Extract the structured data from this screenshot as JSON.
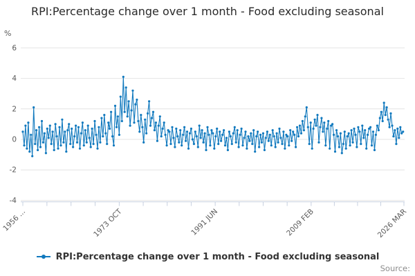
{
  "title": "RPI:Percentage change over 1 month - Food excluding seasonal",
  "legend": {
    "label": "RPI:Percentage change over 1 month - Food excluding seasonal",
    "marker_color": "#1179be"
  },
  "footer": {
    "source_label": "Source:"
  },
  "colors": {
    "line": "#1179be",
    "grid": "#e4e4e4",
    "axis": "#c7d0e0",
    "tick_label": "#595959",
    "title_text": "#2a2a2a",
    "legend_text": "#333333",
    "source_text": "#8c8c8c"
  },
  "chart_data": {
    "type": "line",
    "title": "RPI:Percentage change over 1 month - Food excluding seasonal",
    "xlabel": "",
    "ylabel": "%",
    "ylim": [
      -4,
      6
    ],
    "y_ticks": [
      6,
      4,
      2,
      0,
      -2,
      -4
    ],
    "grid": "horizontal-only",
    "legend_position": "bottom-center",
    "x_start": "1956-01",
    "x_end": "2026-03",
    "sample_interval_months": 3,
    "total_months": 842,
    "x_major_tick_labels": [
      "1956 ...",
      "1973 OCT",
      "1991 JUN",
      "2009 FEB",
      "2026 MAR"
    ],
    "x_major_tick_months": [
      0,
      213,
      425,
      637,
      842
    ],
    "minor_ticks_per_interval": 3,
    "series": [
      {
        "name": "RPI:Percentage change over 1 month - Food excluding seasonal",
        "color": "#1179be",
        "values": [
          0.5,
          -0.4,
          0.9,
          -0.6,
          1.1,
          -0.8,
          0.3,
          -1.1,
          2.1,
          -0.3,
          0.6,
          -0.7,
          0.8,
          -0.5,
          1.2,
          -0.2,
          0.4,
          -0.9,
          0.7,
          0.1,
          0.9,
          -0.3,
          0.5,
          -0.7,
          1.0,
          0.2,
          -0.6,
          0.8,
          -0.4,
          1.3,
          -0.2,
          0.5,
          -0.8,
          0.6,
          1.0,
          -0.3,
          0.7,
          -0.5,
          0.2,
          0.9,
          -0.2,
          0.8,
          -0.6,
          0.4,
          1.1,
          -0.4,
          0.6,
          -0.2,
          0.9,
          0.1,
          -0.5,
          0.7,
          -0.3,
          1.2,
          0.3,
          -0.6,
          0.8,
          -0.2,
          1.4,
          0.2,
          1.6,
          0.4,
          -0.3,
          1.1,
          0.7,
          1.8,
          0.2,
          -0.4,
          2.2,
          0.8,
          1.5,
          0.3,
          2.8,
          1.2,
          4.1,
          1.8,
          3.4,
          1.5,
          2.5,
          0.9,
          1.9,
          3.2,
          1.1,
          2.3,
          2.6,
          1.2,
          0.5,
          1.6,
          0.8,
          -0.2,
          1.3,
          0.4,
          1.7,
          2.5,
          0.9,
          1.4,
          1.8,
          0.6,
          1.1,
          -0.1,
          0.9,
          1.5,
          0.2,
          0.7,
          1.1,
          0.3,
          -0.4,
          0.6,
          0.5,
          -0.3,
          0.8,
          0.1,
          -0.5,
          0.7,
          0.2,
          -0.2,
          0.6,
          -0.4,
          0.3,
          0.8,
          -0.1,
          0.5,
          -0.6,
          0.4,
          0.7,
          0.0,
          -0.3,
          0.5,
          0.2,
          -0.5,
          0.9,
          0.1,
          0.6,
          -0.2,
          0.4,
          -0.7,
          0.8,
          0.3,
          -0.4,
          0.6,
          0.4,
          -0.6,
          0.2,
          0.7,
          -0.3,
          0.5,
          -0.1,
          0.3,
          0.6,
          -0.4,
          0.1,
          -0.7,
          0.5,
          0.2,
          -0.3,
          0.4,
          0.8,
          -0.2,
          0.6,
          -0.5,
          0.3,
          0.7,
          -0.4,
          0.1,
          0.5,
          -0.6,
          0.2,
          -0.1,
          0.4,
          -0.3,
          0.6,
          -0.8,
          0.2,
          0.5,
          -0.5,
          0.3,
          -0.2,
          0.4,
          -0.7,
          0.1,
          0.5,
          -0.1,
          0.3,
          -0.4,
          0.6,
          0.2,
          -0.5,
          0.4,
          -0.2,
          0.7,
          0.1,
          -0.3,
          0.5,
          -0.6,
          0.3,
          0.2,
          -0.4,
          0.6,
          -0.1,
          0.5,
          0.3,
          -0.5,
          0.8,
          0.2,
          0.9,
          0.4,
          1.2,
          0.6,
          1.5,
          2.1,
          0.8,
          -0.3,
          1.1,
          -0.6,
          0.7,
          1.3,
          0.9,
          1.6,
          -0.2,
          0.8,
          1.4,
          0.5,
          1.1,
          -0.4,
          0.7,
          1.2,
          -0.6,
          0.9,
          1.0,
          0.3,
          -0.8,
          0.6,
          0.2,
          -0.5,
          0.4,
          -0.9,
          -0.3,
          0.5,
          -0.6,
          0.2,
          0.4,
          -0.4,
          0.6,
          -0.2,
          0.7,
          0.3,
          -0.5,
          0.8,
          0.5,
          -0.3,
          0.9,
          0.1,
          0.6,
          -0.6,
          0.3,
          0.7,
          0.8,
          -0.4,
          0.5,
          -0.7,
          0.3,
          0.9,
          0.6,
          1.4,
          1.8,
          1.2,
          2.4,
          1.6,
          2.1,
          1.3,
          0.8,
          1.7,
          0.9,
          0.2,
          0.6,
          -0.3,
          0.7,
          0.1,
          0.8,
          0.4,
          0.5
        ]
      }
    ]
  }
}
